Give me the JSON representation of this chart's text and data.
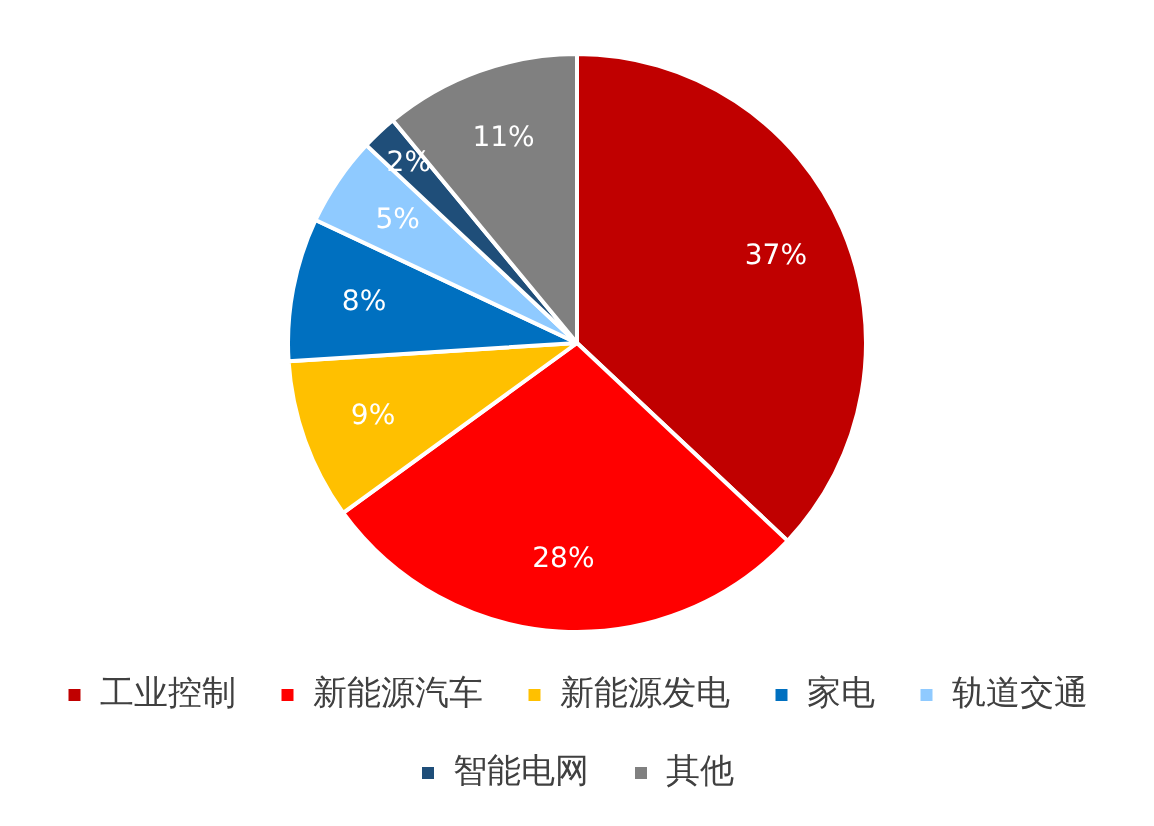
{
  "chart_data": {
    "type": "pie",
    "categories": [
      "工业控制",
      "新能源汽车",
      "新能源发电",
      "家电",
      "轨道交通",
      "智能电网",
      "其他"
    ],
    "values": [
      37,
      28,
      9,
      8,
      5,
      2,
      11
    ],
    "colors": [
      "#c00000",
      "#ff0000",
      "#ffc000",
      "#0070c0",
      "#8fcaff",
      "#1f4e79",
      "#808080"
    ],
    "value_labels": [
      "37%",
      "28%",
      "9%",
      "8%",
      "5%",
      "2%",
      "11%"
    ],
    "legend": "bottom"
  }
}
